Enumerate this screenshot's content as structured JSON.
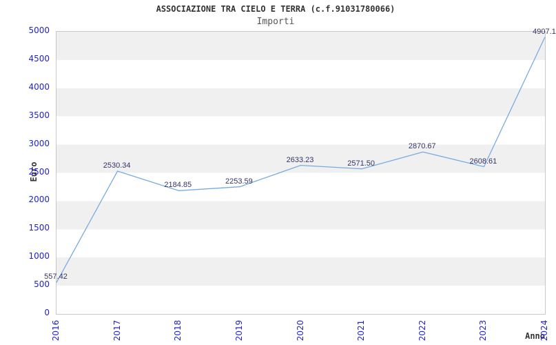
{
  "title": "ASSOCIAZIONE TRA CIELO E TERRA (c.f.91031780066)",
  "subtitle": "Importi",
  "chart_data": {
    "type": "line",
    "title": "ASSOCIAZIONE TRA CIELO E TERRA (c.f.91031780066)",
    "subtitle": "Importi",
    "xlabel": "Anno",
    "ylabel": "Euro",
    "categories": [
      "2016",
      "2017",
      "2018",
      "2019",
      "2020",
      "2021",
      "2022",
      "2023",
      "2024"
    ],
    "values": [
      557.42,
      2530.34,
      2184.85,
      2253.59,
      2633.23,
      2571.5,
      2870.67,
      2608.61,
      4907.1
    ],
    "point_labels": [
      "557.42",
      "2530.34",
      "2184.85",
      "2253.59",
      "2633.23",
      "2571.50",
      "2870.67",
      "2608.61",
      "4907.1"
    ],
    "ylim": [
      0,
      5000
    ],
    "ytick_step": 500,
    "yticks": [
      "0",
      "500",
      "1000",
      "1500",
      "2000",
      "2500",
      "3000",
      "3500",
      "4000",
      "4500",
      "5000"
    ],
    "grid": "horizontal-bands",
    "legend_position": "none",
    "colors": {
      "line": "#77abdf",
      "tick_label": "#2222cc",
      "data_label": "#333366",
      "band": "#f0f0f0",
      "plot_border": "#c8c8c8",
      "title": "#333333",
      "subtitle": "#555555"
    }
  }
}
